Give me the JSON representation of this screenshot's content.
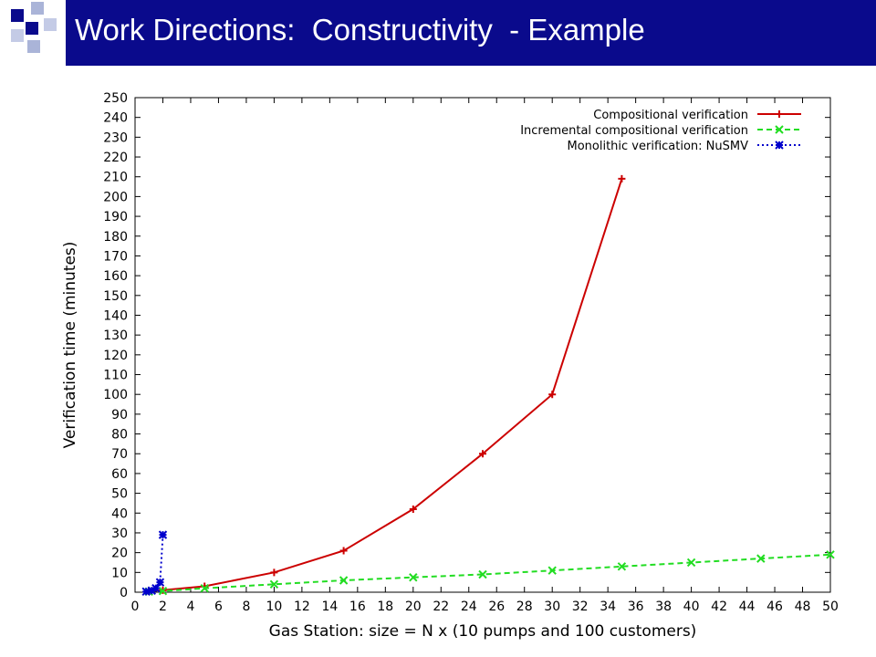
{
  "slide": {
    "title": "Work Directions:  Constructivity  - Example",
    "title_bar_color": "#0a0a8c",
    "logo_icon": "blue-squares-logo"
  },
  "chart_data": {
    "type": "line",
    "title": "",
    "xlabel": "Gas Station: size = N x (10 pumps and 100 customers)",
    "ylabel": "Verification time (minutes)",
    "xlim": [
      0,
      50
    ],
    "ylim": [
      0,
      250
    ],
    "xticks": [
      0,
      2,
      4,
      6,
      8,
      10,
      12,
      14,
      16,
      18,
      20,
      22,
      24,
      26,
      28,
      30,
      32,
      34,
      36,
      38,
      40,
      42,
      44,
      46,
      48,
      50
    ],
    "yticks": [
      0,
      10,
      20,
      30,
      40,
      50,
      60,
      70,
      80,
      90,
      100,
      110,
      120,
      130,
      140,
      150,
      160,
      170,
      180,
      190,
      200,
      210,
      220,
      230,
      240,
      250
    ],
    "grid": false,
    "legend_position": "top-right",
    "series": [
      {
        "name": "Compositional verification",
        "color": "#cc0000",
        "line_style": "solid",
        "marker": "plus",
        "x": [
          1,
          2,
          5,
          10,
          15,
          20,
          25,
          30,
          35
        ],
        "y": [
          0.5,
          1,
          3,
          10,
          21,
          42,
          70,
          100,
          209
        ]
      },
      {
        "name": "Incremental compositional verification",
        "color": "#22dd22",
        "line_style": "dashed",
        "marker": "x",
        "x": [
          1,
          2,
          5,
          10,
          15,
          20,
          25,
          30,
          35,
          40,
          45,
          50
        ],
        "y": [
          0.3,
          0.6,
          2,
          4,
          6,
          7.5,
          9,
          11,
          13,
          15,
          17,
          19
        ]
      },
      {
        "name": "Monolithic verification: NuSMV",
        "color": "#0000cc",
        "line_style": "dotted",
        "marker": "star",
        "x": [
          0.8,
          1.2,
          1.5,
          1.8,
          2
        ],
        "y": [
          0.3,
          0.8,
          2,
          5,
          29
        ]
      }
    ]
  }
}
